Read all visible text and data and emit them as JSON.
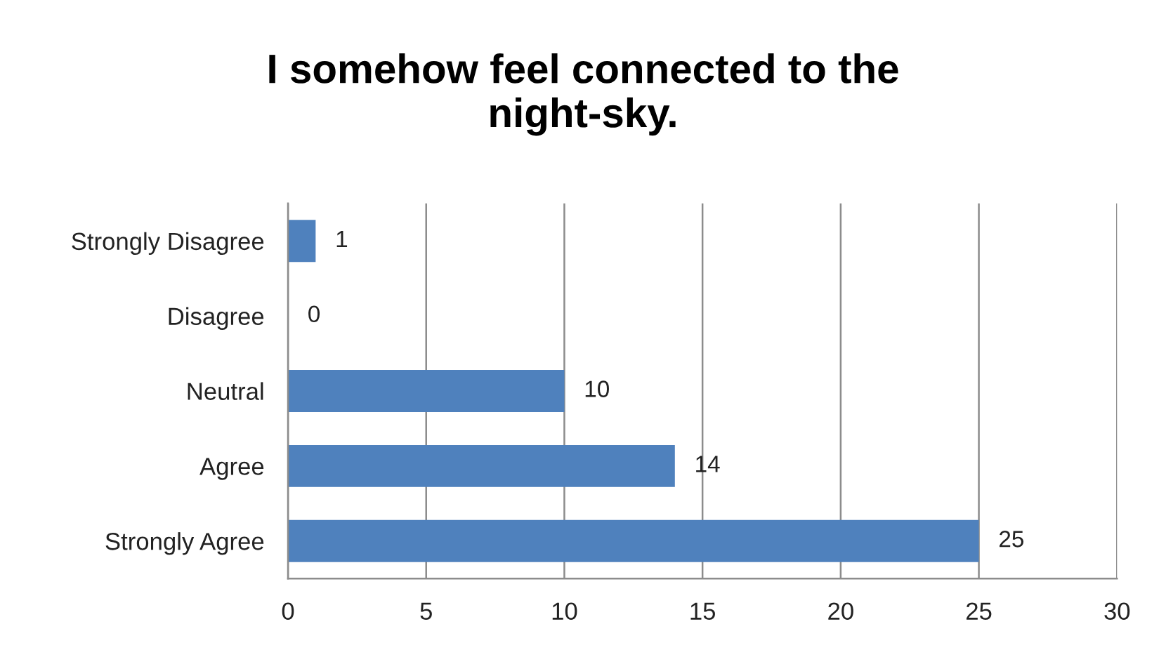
{
  "chart_data": {
    "type": "bar",
    "orientation": "horizontal",
    "title": "I somehow feel connected to the night-sky.",
    "categories": [
      "Strongly Disagree",
      "Disagree",
      "Neutral",
      "Agree",
      "Strongly Agree"
    ],
    "values": [
      1,
      0,
      10,
      14,
      25
    ],
    "color": "#4f81bd",
    "xlim": [
      0,
      30
    ],
    "xticks": [
      0,
      5,
      10,
      15,
      20,
      25,
      30
    ],
    "grid": "x",
    "data_labels": true
  }
}
